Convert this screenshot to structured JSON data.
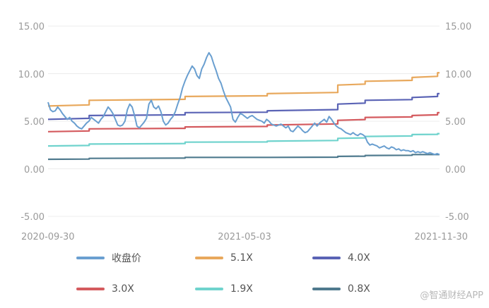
{
  "chart_data": {
    "type": "line",
    "x_ticks": [
      "2020-09-30",
      "2021-05-03",
      "2021-11-30"
    ],
    "y_ticks": [
      "15.00",
      "10.00",
      "5.00",
      "0.00",
      "-5.00"
    ],
    "ylim": [
      -5,
      15
    ],
    "y_secondary_ticks": [
      "15.00",
      "10.00",
      "5.00",
      "0.00",
      "-5.00"
    ],
    "grid": "horizontal-light",
    "legend_position": "bottom",
    "series": [
      {
        "name": "收盘价",
        "color": "#6a9fd0",
        "values": [
          7.0,
          6.2,
          6.0,
          6.1,
          6.5,
          6.2,
          5.8,
          5.5,
          5.2,
          5.4,
          5.0,
          4.8,
          4.5,
          4.3,
          4.2,
          4.5,
          4.8,
          5.0,
          5.4,
          5.2,
          5.0,
          4.8,
          5.2,
          5.5,
          6.0,
          6.5,
          6.2,
          5.8,
          5.2,
          4.6,
          4.5,
          4.6,
          5.0,
          6.2,
          6.8,
          6.5,
          5.6,
          4.5,
          4.3,
          4.6,
          4.9,
          5.3,
          6.8,
          7.2,
          6.5,
          6.3,
          6.6,
          6.0,
          5.0,
          4.6,
          4.8,
          5.2,
          5.5,
          6.0,
          6.8,
          7.5,
          8.5,
          9.2,
          9.8,
          10.3,
          10.8,
          10.5,
          9.8,
          9.5,
          10.5,
          11.0,
          11.7,
          12.2,
          11.8,
          11.0,
          10.3,
          9.5,
          9.0,
          8.2,
          7.5,
          7.0,
          6.5,
          5.2,
          4.9,
          5.4,
          5.8,
          5.7,
          5.5,
          5.3,
          5.5,
          5.6,
          5.4,
          5.2,
          5.1,
          5.0,
          4.8,
          5.2,
          5.0,
          4.7,
          4.6,
          4.5,
          4.6,
          4.7,
          4.5,
          4.3,
          4.5,
          4.0,
          3.9,
          4.2,
          4.5,
          4.3,
          4.0,
          3.8,
          3.9,
          4.2,
          4.5,
          4.8,
          4.5,
          4.8,
          5.0,
          5.2,
          4.9,
          5.5,
          5.2,
          4.8,
          4.5,
          4.3,
          4.2,
          4.0,
          3.8,
          3.7,
          3.6,
          3.8,
          3.6,
          3.5,
          3.7,
          3.6,
          3.4,
          2.8,
          2.5,
          2.6,
          2.5,
          2.4,
          2.2,
          2.3,
          2.4,
          2.2,
          2.1,
          2.3,
          2.2,
          2.0,
          2.1,
          1.9,
          2.0,
          1.9,
          1.9,
          1.8,
          1.9,
          1.7,
          1.8,
          1.7,
          1.8,
          1.7,
          1.6,
          1.7,
          1.6,
          1.5,
          1.6,
          1.5
        ]
      },
      {
        "name": "5.1X",
        "color": "#e8a85c",
        "steps": [
          6.6,
          7.2,
          7.6,
          7.9,
          8.8,
          9.2,
          9.6,
          10.1
        ]
      },
      {
        "name": "4.0X",
        "color": "#5a63b5",
        "steps": [
          5.2,
          5.6,
          5.9,
          6.1,
          6.8,
          7.2,
          7.5,
          7.9
        ]
      },
      {
        "name": "3.0X",
        "color": "#d45a5e",
        "steps": [
          3.9,
          4.2,
          4.4,
          4.6,
          5.1,
          5.4,
          5.6,
          5.9
        ]
      },
      {
        "name": "1.9X",
        "color": "#6fd3cd",
        "steps": [
          2.4,
          2.6,
          2.8,
          2.9,
          3.2,
          3.4,
          3.6,
          3.7
        ]
      },
      {
        "name": "0.8X",
        "color": "#4f7a8e",
        "steps": [
          1.0,
          1.1,
          1.2,
          1.2,
          1.3,
          1.4,
          1.5,
          1.5
        ]
      }
    ]
  },
  "watermark": "@智通财经APP"
}
